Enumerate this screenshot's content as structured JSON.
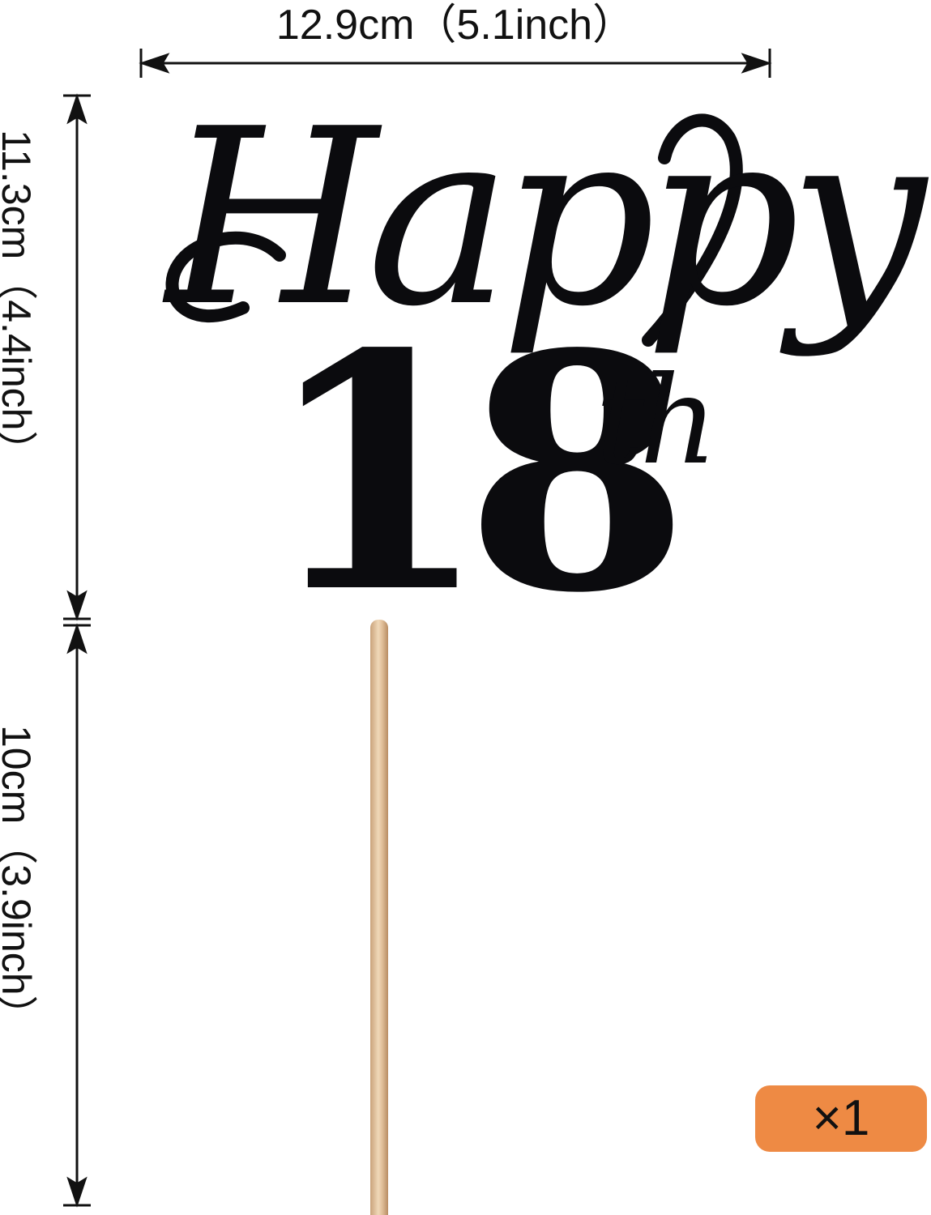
{
  "dimensions": {
    "width_label": "12.9cm（5.1inch）",
    "topper_height_label": "11.3cm（4.4inch）",
    "stick_length_label": "10cm（3.9inch）"
  },
  "topper": {
    "line1": "Happy",
    "number": "18",
    "suffix": "th",
    "color": "#0b0b0e"
  },
  "stick": {
    "color": "#e2c19c"
  },
  "quantity_badge": {
    "label": "×1",
    "color": "#ee8a44"
  }
}
